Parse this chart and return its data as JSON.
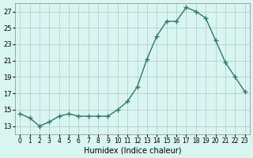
{
  "x": [
    0,
    1,
    2,
    3,
    4,
    5,
    6,
    7,
    8,
    9,
    10,
    11,
    12,
    13,
    14,
    15,
    16,
    17,
    18,
    19,
    20,
    21,
    22,
    23
  ],
  "y": [
    14.5,
    14.0,
    13.0,
    13.5,
    14.2,
    14.5,
    14.2,
    14.2,
    14.2,
    14.2,
    15.0,
    16.0,
    17.8,
    21.2,
    24.0,
    25.8,
    25.8,
    27.5,
    27.0,
    26.2,
    23.5,
    20.8,
    19.0,
    17.2
  ],
  "title": "",
  "xlabel": "Humidex (Indice chaleur)",
  "ylabel": "",
  "xlim": [
    -0.5,
    23.5
  ],
  "ylim": [
    12,
    28
  ],
  "yticks": [
    13,
    15,
    17,
    19,
    21,
    23,
    25,
    27
  ],
  "xtick_labels": [
    "0",
    "1",
    "2",
    "3",
    "4",
    "5",
    "6",
    "7",
    "8",
    "9",
    "10",
    "11",
    "12",
    "13",
    "14",
    "15",
    "16",
    "17",
    "18",
    "19",
    "20",
    "21",
    "22",
    "23"
  ],
  "line_color": "#2d7a6a",
  "marker_color": "#2d7a6a",
  "bg_color": "#d8f5f0",
  "grid_color": "#b0c8c8",
  "fig_bg": "#d8f5f0"
}
